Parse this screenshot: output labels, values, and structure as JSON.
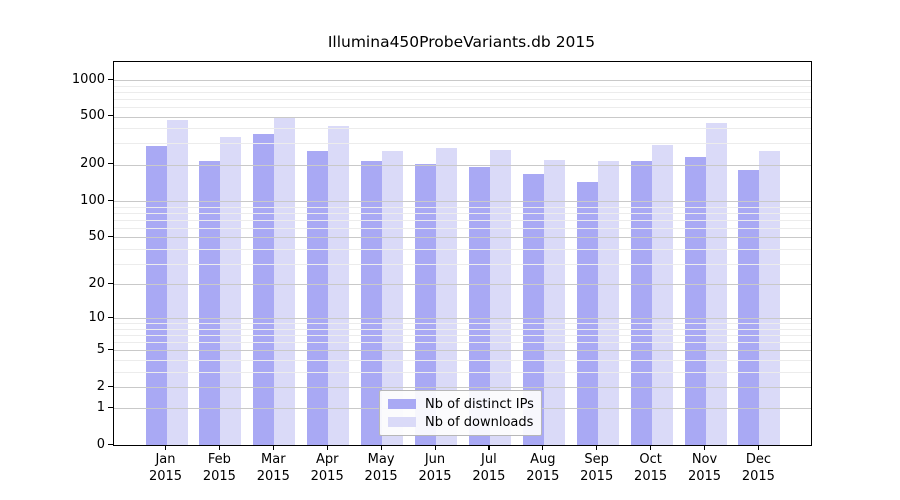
{
  "title": "Illumina450ProbeVariants.db 2015",
  "legend": {
    "items": [
      {
        "label": "Nb of distinct IPs",
        "color": "#a9a9f4"
      },
      {
        "label": "Nb of downloads",
        "color": "#dadaf8"
      }
    ]
  },
  "colors": {
    "background": "#ffffff",
    "axis_frame": "#000000",
    "major_grid": "#c9c9c9",
    "minor_grid": "#ececec",
    "bar_ips": "#a9a9f4",
    "bar_downloads": "#dadaf8",
    "legend_border": "#b7b7b7",
    "text": "#000000"
  },
  "chart_data": {
    "type": "bar",
    "title": "Illumina450ProbeVariants.db 2015",
    "categories": [
      {
        "month": "Jan",
        "year": "2015"
      },
      {
        "month": "Feb",
        "year": "2015"
      },
      {
        "month": "Mar",
        "year": "2015"
      },
      {
        "month": "Apr",
        "year": "2015"
      },
      {
        "month": "May",
        "year": "2015"
      },
      {
        "month": "Jun",
        "year": "2015"
      },
      {
        "month": "Jul",
        "year": "2015"
      },
      {
        "month": "Aug",
        "year": "2015"
      },
      {
        "month": "Sep",
        "year": "2015"
      },
      {
        "month": "Oct",
        "year": "2015"
      },
      {
        "month": "Nov",
        "year": "2015"
      },
      {
        "month": "Dec",
        "year": "2015"
      }
    ],
    "series": [
      {
        "name": "Nb of distinct IPs",
        "color": "#a9a9f4",
        "values": [
          287,
          216,
          361,
          258,
          214,
          202,
          193,
          169,
          143,
          216,
          233,
          183
        ]
      },
      {
        "name": "Nb of downloads",
        "color": "#dadaf8",
        "values": [
          465,
          337,
          490,
          417,
          259,
          278,
          264,
          221,
          217,
          289,
          443,
          261
        ]
      }
    ],
    "y_scale": "log10(1+v)",
    "ylim": [
      0,
      1405
    ],
    "y_major_ticks": [
      1000,
      500,
      200,
      100,
      50,
      20,
      10,
      5,
      2,
      1,
      0
    ],
    "y_minor_gridlines": [
      900,
      800,
      700,
      600,
      400,
      300,
      90,
      80,
      70,
      60,
      40,
      30,
      9,
      8,
      7,
      6,
      4,
      3
    ],
    "xlabel": "",
    "ylabel": "",
    "grid": "horizontal gridlines drawn over bars",
    "legend_position": "inside plot, bottom center"
  }
}
